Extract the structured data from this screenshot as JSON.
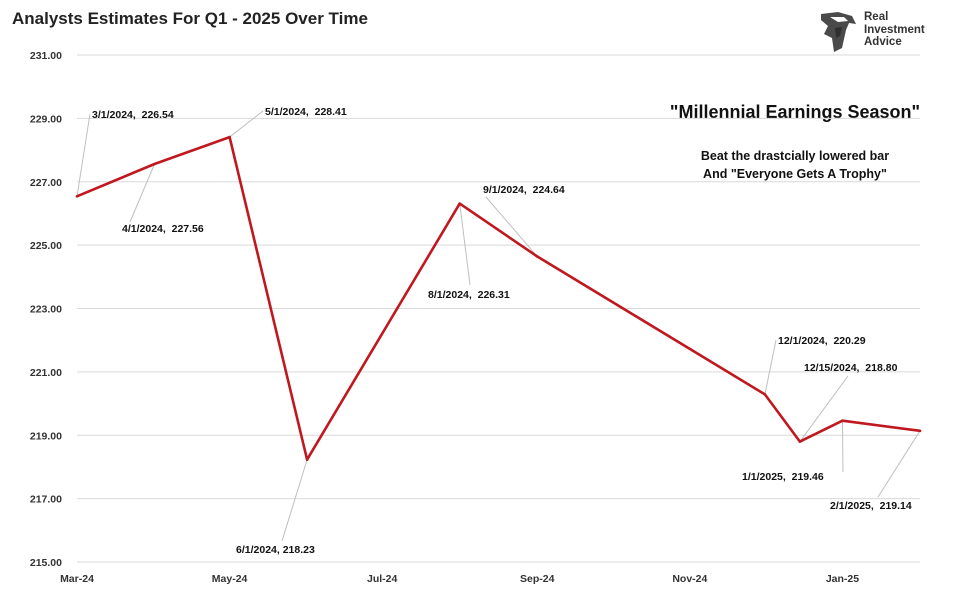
{
  "chart_data": {
    "type": "line",
    "title": "Analysts Estimates For Q1 - 2025 Over Time",
    "xlabel": "",
    "ylabel": "",
    "ylim": [
      215.0,
      231.0
    ],
    "y_ticks": [
      "231.00",
      "229.00",
      "227.00",
      "225.00",
      "223.00",
      "221.00",
      "219.00",
      "217.00",
      "215.00"
    ],
    "x_ticks": [
      "Mar-24",
      "May-24",
      "Jul-24",
      "Sep-24",
      "Nov-24",
      "Jan-25"
    ],
    "x_tick_dates": [
      "2024-03-01",
      "2024-05-01",
      "2024-07-01",
      "2024-09-01",
      "2024-11-01",
      "2025-01-01"
    ],
    "xlim": [
      "2024-03-01",
      "2025-02-01"
    ],
    "grid": "horizontal",
    "series": [
      {
        "color": "#c0181f",
        "points": [
          {
            "x": "2024-03-01",
            "y": 226.54
          },
          {
            "x": "2024-04-01",
            "y": 227.56
          },
          {
            "x": "2024-05-01",
            "y": 228.41
          },
          {
            "x": "2024-06-01",
            "y": 218.23
          },
          {
            "x": "2024-08-01",
            "y": 226.31
          },
          {
            "x": "2024-09-01",
            "y": 224.64
          },
          {
            "x": "2024-12-01",
            "y": 220.29
          },
          {
            "x": "2024-12-15",
            "y": 218.8
          },
          {
            "x": "2025-01-01",
            "y": 219.46
          },
          {
            "x": "2025-02-01",
            "y": 219.14
          }
        ]
      }
    ],
    "annotations": [
      {
        "text": "3/1/2024,  226.54",
        "x": "2024-03-01",
        "y": 226.54
      },
      {
        "text": "4/1/2024,  227.56",
        "x": "2024-04-01",
        "y": 227.56
      },
      {
        "text": "5/1/2024,  228.41",
        "x": "2024-05-01",
        "y": 228.41
      },
      {
        "text": "6/1/2024, 218.23",
        "x": "2024-06-01",
        "y": 218.23
      },
      {
        "text": "8/1/2024,  226.31",
        "x": "2024-08-01",
        "y": 226.31
      },
      {
        "text": "9/1/2024,  224.64",
        "x": "2024-09-01",
        "y": 224.64
      },
      {
        "text": "12/1/2024,  220.29",
        "x": "2024-12-01",
        "y": 220.29
      },
      {
        "text": "12/15/2024,  218.80",
        "x": "2024-12-15",
        "y": 218.8
      },
      {
        "text": "1/1/2025,  219.46",
        "x": "2025-01-01",
        "y": 219.46
      },
      {
        "text": "2/1/2025,  219.14",
        "x": "2025-02-01",
        "y": 219.14
      }
    ]
  },
  "headline": "\"Millennial Earnings Season\"",
  "subtext": [
    "Beat the drastcially lowered bar",
    "And \"Everyone Gets A Trophy\""
  ],
  "logo": {
    "line1": "Real",
    "line2": "Investment",
    "line3": "Advice"
  },
  "colors": {
    "line": "#c0181f",
    "grid": "#d9d9d9",
    "leader": "#bfbfbf"
  }
}
